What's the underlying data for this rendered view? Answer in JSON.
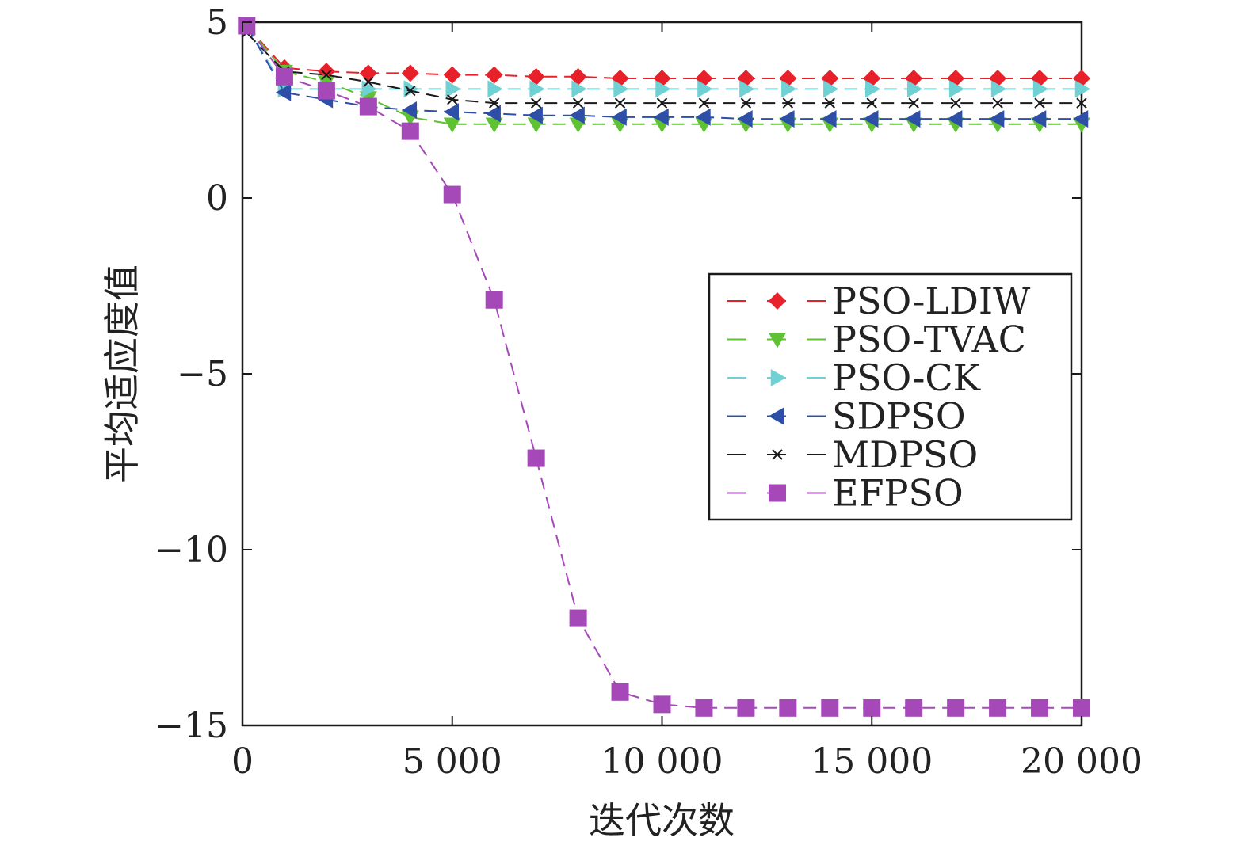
{
  "chart_data": {
    "type": "line",
    "title": "",
    "xlabel": "迭代次数",
    "ylabel": "平均适应度值",
    "xlim": [
      0,
      20000
    ],
    "ylim": [
      -15,
      5
    ],
    "x_ticks": [
      {
        "value": 0,
        "label": "0"
      },
      {
        "value": 5000,
        "label": "5 000"
      },
      {
        "value": 10000,
        "label": "10 000"
      },
      {
        "value": 15000,
        "label": "15 000"
      },
      {
        "value": 20000,
        "label": "20 000"
      }
    ],
    "y_ticks": [
      {
        "value": 5,
        "label": "5"
      },
      {
        "value": 0,
        "label": "0"
      },
      {
        "value": -5,
        "label": "−5"
      },
      {
        "value": -10,
        "label": "−10"
      },
      {
        "value": -15,
        "label": "−15"
      }
    ],
    "grid": false,
    "legend_position": "center-right",
    "x": [
      100,
      1000,
      2000,
      3000,
      4000,
      5000,
      6000,
      7000,
      8000,
      9000,
      10000,
      11000,
      12000,
      13000,
      14000,
      15000,
      16000,
      17000,
      18000,
      19000,
      20000
    ],
    "series": [
      {
        "name": "PSO-LDIW",
        "color": "#e8202a",
        "marker": "diamond",
        "values": [
          4.9,
          3.7,
          3.6,
          3.55,
          3.55,
          3.5,
          3.5,
          3.45,
          3.45,
          3.4,
          3.4,
          3.4,
          3.4,
          3.4,
          3.4,
          3.4,
          3.4,
          3.4,
          3.4,
          3.4,
          3.4
        ]
      },
      {
        "name": "PSO-TVAC",
        "color": "#5ec232",
        "marker": "triangle-down",
        "values": [
          4.9,
          3.6,
          3.3,
          2.85,
          2.3,
          2.1,
          2.1,
          2.1,
          2.1,
          2.1,
          2.1,
          2.1,
          2.1,
          2.1,
          2.1,
          2.1,
          2.1,
          2.1,
          2.1,
          2.1,
          2.1
        ]
      },
      {
        "name": "PSO-CK",
        "color": "#6fd1d3",
        "marker": "triangle-right",
        "values": [
          4.9,
          3.1,
          3.1,
          3.1,
          3.1,
          3.1,
          3.1,
          3.1,
          3.1,
          3.1,
          3.1,
          3.1,
          3.1,
          3.1,
          3.1,
          3.1,
          3.1,
          3.1,
          3.1,
          3.1,
          3.1
        ]
      },
      {
        "name": "SDPSO",
        "color": "#2e4fa8",
        "marker": "triangle-left",
        "values": [
          4.9,
          3.0,
          2.8,
          2.6,
          2.5,
          2.45,
          2.4,
          2.35,
          2.35,
          2.3,
          2.3,
          2.3,
          2.25,
          2.25,
          2.25,
          2.25,
          2.25,
          2.25,
          2.25,
          2.25,
          2.25
        ]
      },
      {
        "name": "MDPSO",
        "color": "#1a1a1a",
        "marker": "x",
        "values": [
          4.7,
          3.6,
          3.5,
          3.3,
          3.05,
          2.8,
          2.7,
          2.7,
          2.7,
          2.7,
          2.7,
          2.7,
          2.7,
          2.7,
          2.7,
          2.7,
          2.7,
          2.7,
          2.7,
          2.7,
          2.7
        ]
      },
      {
        "name": "EFPSO",
        "color": "#a548b8",
        "marker": "square",
        "values": [
          4.9,
          3.45,
          3.05,
          2.6,
          1.9,
          0.1,
          -2.9,
          -7.4,
          -11.95,
          -14.05,
          -14.4,
          -14.5,
          -14.5,
          -14.5,
          -14.5,
          -14.5,
          -14.5,
          -14.5,
          -14.5,
          -14.5,
          -14.5
        ]
      }
    ]
  }
}
